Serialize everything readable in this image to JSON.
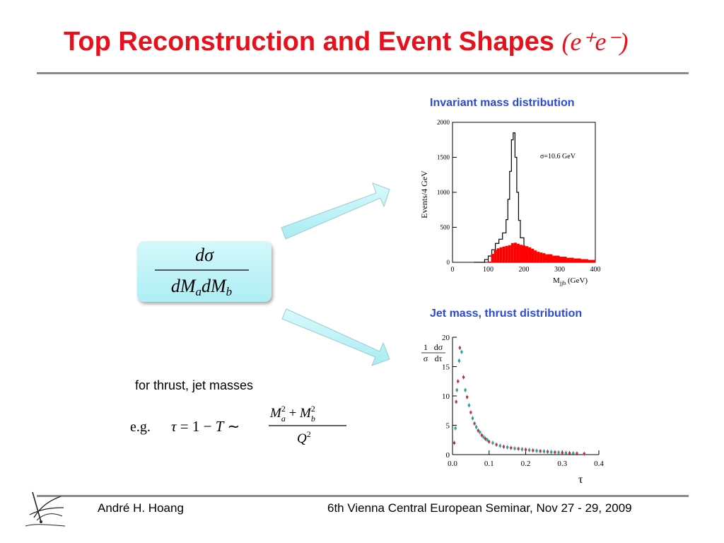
{
  "slide": {
    "title": "Top Reconstruction and Event Shapes",
    "title_math": "(e⁺e⁻)",
    "note": "for thrust, jet masses",
    "formula_main": {
      "numerator": "dσ",
      "denominator": "dMadMb"
    },
    "formula_eg": {
      "prefix": "e.g.",
      "lhs": "τ = 1 − T ∼",
      "numerator": "Ma² + Mb²",
      "denominator": "Q²"
    }
  },
  "footer": {
    "author": "André H. Hoang",
    "event": "6th Vienna Central European Seminar, Nov 27 - 29, 2009"
  },
  "colors": {
    "title": "#e8101a",
    "chart_title": "#2a4ad6",
    "box": "#bff3f7",
    "red_hist": "#ff0000"
  },
  "chart_data": [
    {
      "type": "bar",
      "title": "Invariant mass distribution",
      "xlabel": "Mjjb (GeV)",
      "ylabel": "Events/4 GeV",
      "annotation": "σ=10.6 GeV",
      "xlim": [
        0,
        400
      ],
      "ylim": [
        0,
        2000
      ],
      "xticks": [
        0,
        100,
        200,
        300,
        400
      ],
      "yticks": [
        0,
        500,
        1000,
        1500,
        2000
      ],
      "series": [
        {
          "x": [
            100,
            108,
            116,
            124,
            132,
            140,
            148,
            156,
            164,
            172,
            180,
            188,
            196,
            204,
            212,
            220,
            228,
            236,
            244,
            252,
            260,
            280,
            300,
            320,
            340,
            360,
            380,
            400
          ],
          "values": [
            10,
            120,
            180,
            200,
            215,
            225,
            235,
            245,
            275,
            280,
            265,
            250,
            240,
            230,
            215,
            195,
            170,
            150,
            140,
            130,
            115,
            95,
            80,
            65,
            55,
            45,
            35,
            30
          ]
        },
        {
          "x": [
            60,
            90,
            100,
            110,
            120,
            130,
            140,
            150,
            155,
            160,
            165,
            170,
            175,
            180,
            185,
            190,
            200,
            210,
            220,
            240,
            260,
            300
          ],
          "values": [
            0,
            40,
            90,
            180,
            270,
            330,
            420,
            610,
            900,
            1300,
            1750,
            1850,
            1500,
            1000,
            600,
            350,
            220,
            150,
            120,
            80,
            40,
            20
          ]
        }
      ]
    },
    {
      "type": "scatter",
      "title": "Jet mass, thrust distribution",
      "ylabel": "1 dσ / σ dτ",
      "xlabel": "τ",
      "xlim": [
        0,
        0.4
      ],
      "ylim": [
        0,
        20
      ],
      "xticks": [
        "0.0",
        "0.1",
        "0.2",
        "0.3",
        "0.4"
      ],
      "yticks": [
        0,
        5,
        10,
        15,
        20
      ],
      "series": [
        {
          "x": [
            0.005,
            0.01,
            0.015,
            0.02,
            0.03,
            0.04,
            0.05,
            0.06,
            0.07,
            0.08,
            0.09,
            0.1,
            0.12,
            0.14,
            0.16,
            0.18,
            0.2,
            0.22,
            0.24,
            0.26,
            0.28,
            0.3,
            0.32,
            0.34,
            0.36
          ],
          "values": [
            2,
            9,
            12.5,
            18.2,
            13.2,
            9.8,
            7.2,
            5.3,
            4.1,
            3.3,
            2.7,
            2.2,
            1.7,
            1.35,
            1.15,
            1.0,
            0.85,
            0.72,
            0.6,
            0.5,
            0.4,
            0.33,
            0.26,
            0.2,
            0.15
          ]
        },
        {
          "x": [
            0.008,
            0.012,
            0.018,
            0.025,
            0.035,
            0.045,
            0.055,
            0.065,
            0.075,
            0.085,
            0.095,
            0.11,
            0.13,
            0.15,
            0.17,
            0.19,
            0.21,
            0.23,
            0.25,
            0.27,
            0.29,
            0.31,
            0.33
          ],
          "values": [
            4.5,
            11,
            16,
            17.5,
            11,
            8.4,
            6.2,
            4.7,
            3.8,
            3.0,
            2.5,
            2.0,
            1.5,
            1.25,
            1.05,
            0.92,
            0.78,
            0.66,
            0.55,
            0.45,
            0.36,
            0.29,
            0.23
          ]
        }
      ]
    }
  ]
}
